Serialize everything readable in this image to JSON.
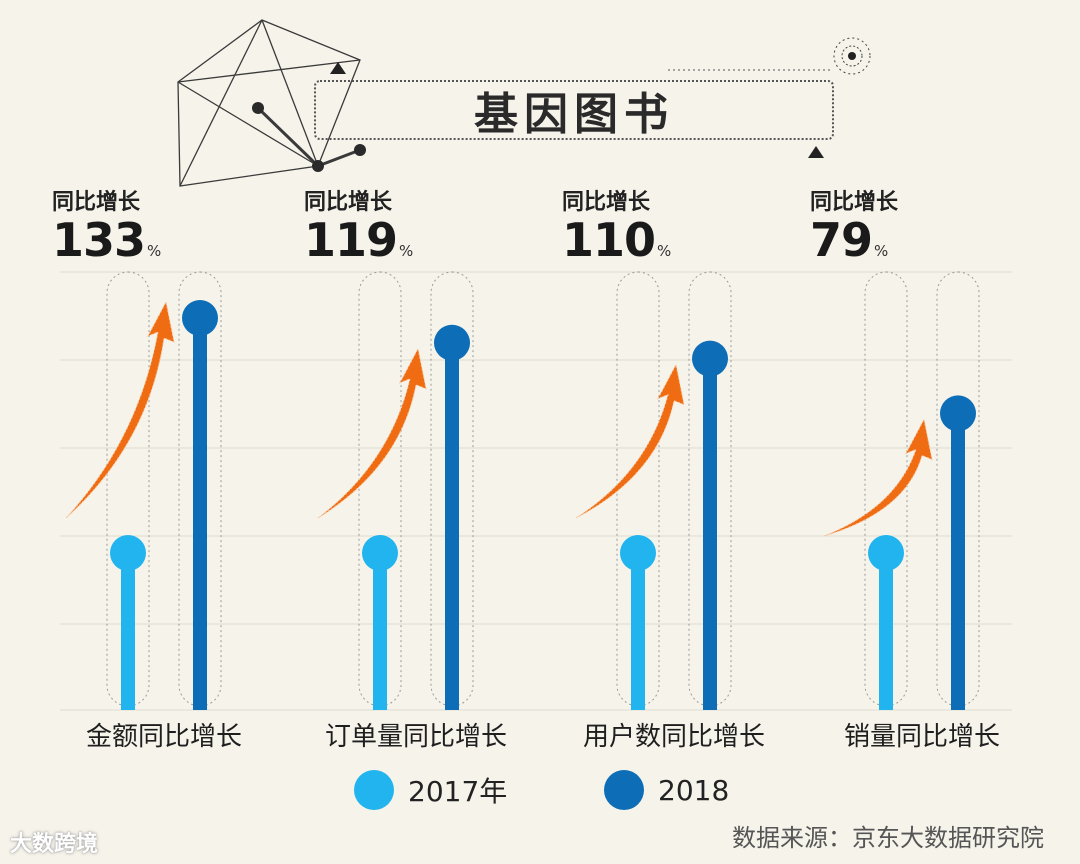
{
  "header": {
    "title": "基因图书"
  },
  "chart_data": {
    "type": "bar",
    "categories": [
      "金额同比增长",
      "订单量同比增长",
      "用户数同比增长",
      "销量同比增长"
    ],
    "series": [
      {
        "name": "2017年",
        "values": [
          1.0,
          1.0,
          1.0,
          1.0
        ],
        "color": "#22b4ee"
      },
      {
        "name": "2018",
        "values": [
          2.33,
          2.19,
          2.1,
          1.79
        ],
        "color": "#0e6db7"
      }
    ],
    "growth_label": "同比增长",
    "growth_values": [
      "133",
      "119",
      "110",
      "79"
    ],
    "growth_unit": "%",
    "grid": true
  },
  "legend": [
    {
      "label": "2017年",
      "color": "#22b4ee"
    },
    {
      "label": "2018",
      "color": "#0e6db7"
    }
  ],
  "source": "数据来源：京东大数据研究院",
  "watermark": "大数跨境",
  "colors": {
    "arrow": "#ef6c12",
    "background": "#f6f3ea"
  }
}
